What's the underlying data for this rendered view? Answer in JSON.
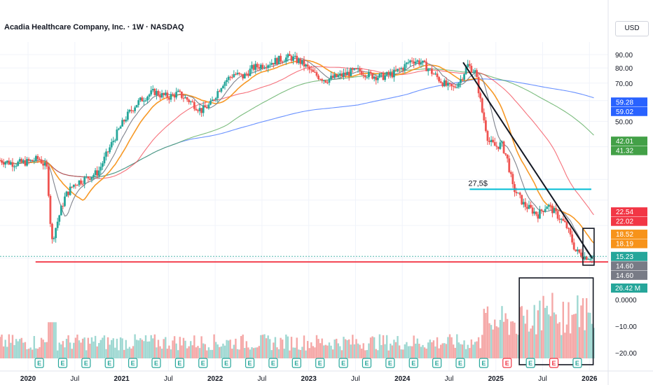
{
  "header": {
    "title": "Acadia Healthcare Company, Inc. · 1W · NASDAQ",
    "currency": "USD"
  },
  "chart_data": {
    "type": "candlestick",
    "symbol": "Acadia Healthcare Company, Inc.",
    "interval": "1W",
    "exchange": "NASDAQ",
    "price_axis": {
      "scale": "log",
      "ticks": [
        "90.00",
        "80.00",
        "70.00",
        "50.00"
      ],
      "tick_values": [
        90,
        80,
        70,
        50
      ]
    },
    "volume_axis": {
      "ticks": [
        "0.0000",
        "−10.00",
        "−20.00"
      ]
    },
    "time_axis": {
      "labels": [
        "2020",
        "Jul",
        "2021",
        "Jul",
        "2022",
        "Jul",
        "2023",
        "Jul",
        "2024",
        "Jul",
        "2025",
        "Jul",
        "2026"
      ],
      "label_years": [
        2020,
        2020.5,
        2021,
        2021.5,
        2022,
        2022.5,
        2023,
        2023.5,
        2024,
        2024.5,
        2025,
        2025.5,
        2026
      ],
      "range": [
        2019.7,
        2026.2
      ]
    },
    "price_path": [
      [
        2019.7,
        35.5
      ],
      [
        2019.85,
        34.5
      ],
      [
        2020.0,
        35.0
      ],
      [
        2020.12,
        36.0
      ],
      [
        2020.2,
        33.0
      ],
      [
        2020.25,
        17.0
      ],
      [
        2020.32,
        21.0
      ],
      [
        2020.4,
        26.0
      ],
      [
        2020.5,
        29.0
      ],
      [
        2020.6,
        30.0
      ],
      [
        2020.75,
        32.0
      ],
      [
        2020.85,
        38.0
      ],
      [
        2020.95,
        45.0
      ],
      [
        2021.05,
        52.0
      ],
      [
        2021.15,
        58.0
      ],
      [
        2021.25,
        62.0
      ],
      [
        2021.35,
        65.0
      ],
      [
        2021.42,
        63.0
      ],
      [
        2021.5,
        62.0
      ],
      [
        2021.6,
        64.0
      ],
      [
        2021.72,
        60.0
      ],
      [
        2021.85,
        55.0
      ],
      [
        2021.95,
        58.0
      ],
      [
        2022.08,
        70.0
      ],
      [
        2022.2,
        76.0
      ],
      [
        2022.3,
        74.0
      ],
      [
        2022.4,
        80.0
      ],
      [
        2022.55,
        83.0
      ],
      [
        2022.68,
        86.0
      ],
      [
        2022.8,
        88.0
      ],
      [
        2022.92,
        84.0
      ],
      [
        2023.05,
        76.0
      ],
      [
        2023.18,
        72.0
      ],
      [
        2023.3,
        74.0
      ],
      [
        2023.45,
        77.0
      ],
      [
        2023.55,
        78.0
      ],
      [
        2023.65,
        75.0
      ],
      [
        2023.78,
        74.0
      ],
      [
        2023.9,
        76.0
      ],
      [
        2024.0,
        80.0
      ],
      [
        2024.1,
        86.0
      ],
      [
        2024.2,
        84.0
      ],
      [
        2024.3,
        78.0
      ],
      [
        2024.4,
        72.0
      ],
      [
        2024.48,
        68.0
      ],
      [
        2024.55,
        67.0
      ],
      [
        2024.62,
        72.0
      ],
      [
        2024.7,
        82.0
      ],
      [
        2024.78,
        77.0
      ],
      [
        2024.85,
        55.0
      ],
      [
        2024.92,
        42.0
      ],
      [
        2025.0,
        40.0
      ],
      [
        2025.06,
        41.0
      ],
      [
        2025.12,
        36.0
      ],
      [
        2025.18,
        28.0
      ],
      [
        2025.3,
        24.0
      ],
      [
        2025.45,
        22.0
      ],
      [
        2025.55,
        24.0
      ],
      [
        2025.65,
        22.0
      ],
      [
        2025.75,
        20.0
      ],
      [
        2025.85,
        16.0
      ],
      [
        2025.95,
        15.2
      ],
      [
        2026.04,
        15.23
      ]
    ],
    "moving_averages": [
      {
        "color": "#2962ff",
        "last": "59.28"
      },
      {
        "color": "#2962ff",
        "last": "59.02"
      },
      {
        "color": "#43a047",
        "last": "42.01"
      },
      {
        "color": "#43a047",
        "last": "41.32"
      },
      {
        "color": "#f23645",
        "last": "22.54"
      },
      {
        "color": "#f23645",
        "last": "22.02"
      },
      {
        "color": "#f7931a",
        "last": "18.52"
      },
      {
        "color": "#f7931a",
        "last": "18.19"
      }
    ],
    "price_labels": [
      {
        "text": "59.28",
        "value": 59.28,
        "color": "#2962ff"
      },
      {
        "text": "59.02",
        "value": 59.02,
        "color": "#2962ff"
      },
      {
        "text": "42.01",
        "value": 42.01,
        "color": "#43a047"
      },
      {
        "text": "41.32",
        "value": 41.32,
        "color": "#43a047"
      },
      {
        "text": "22.54",
        "value": 22.54,
        "color": "#f23645"
      },
      {
        "text": "22.02",
        "value": 22.02,
        "color": "#f23645"
      },
      {
        "text": "18.52",
        "value": 18.52,
        "color": "#f7931a"
      },
      {
        "text": "18.19",
        "value": 18.19,
        "color": "#f7931a"
      },
      {
        "text": "15.23",
        "value": 15.23,
        "color": "#26a69a"
      },
      {
        "text": "14.60",
        "value": 14.6,
        "color": "#787b86"
      },
      {
        "text": "14.60",
        "value": 14.6,
        "color": "#787b86"
      }
    ],
    "volume_label": {
      "text": "26.42 M",
      "color": "#26a69a"
    },
    "annotations": {
      "level_text": "27,5$",
      "level_value": 27.5,
      "support_value": 14.6,
      "earnings_marker": "E"
    },
    "colors": {
      "up": "#26a69a",
      "down": "#ef5350",
      "support": "#f23645",
      "level": "#00bcd4"
    }
  }
}
